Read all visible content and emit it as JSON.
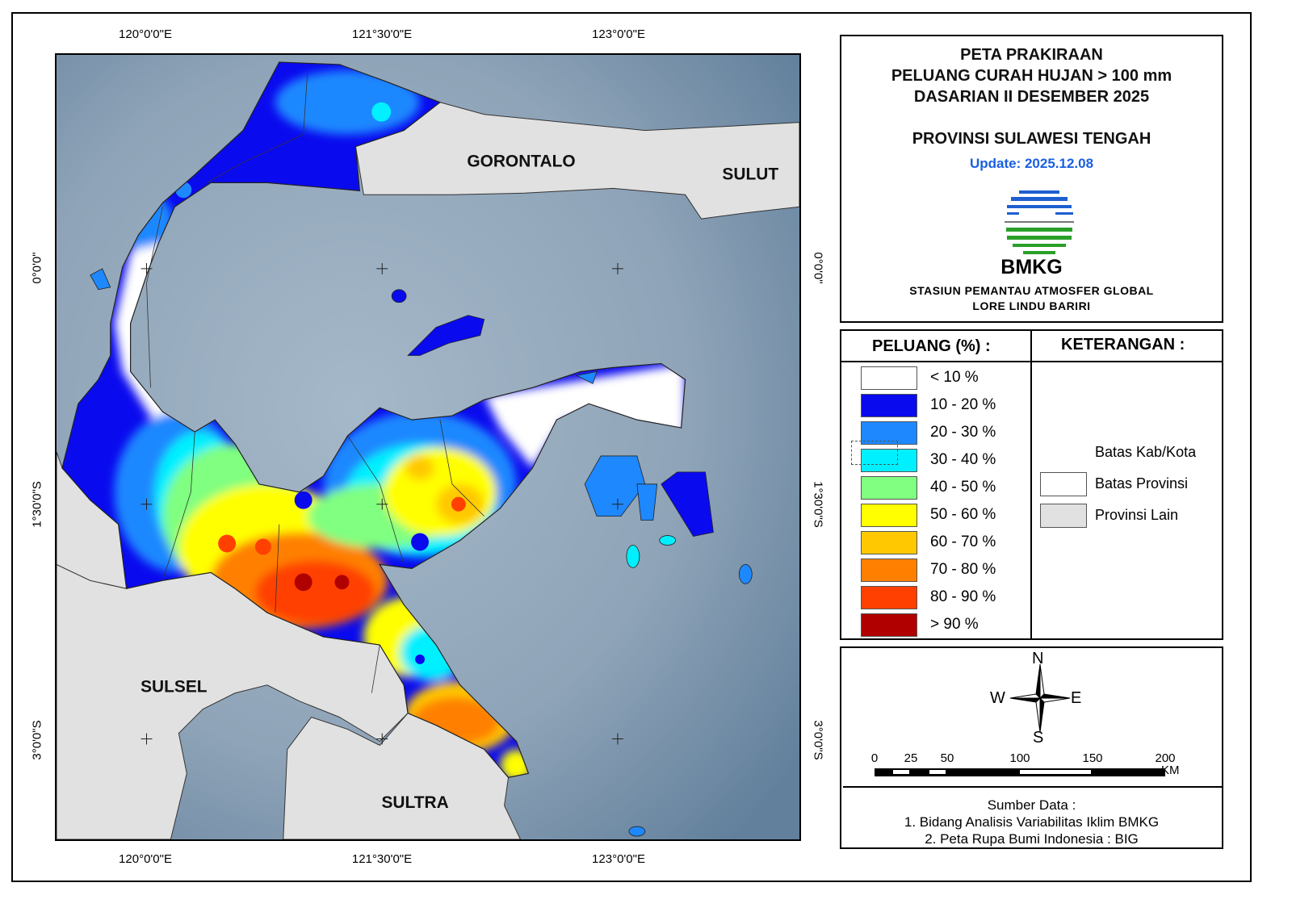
{
  "title": {
    "lines": [
      "PETA PRAKIRAAN",
      "PELUANG CURAH HUJAN > 100 mm",
      "DASARIAN II DESEMBER 2025"
    ],
    "province": "PROVINSI SULAWESI TENGAH",
    "update": "Update: 2025.12.08",
    "logo_text": "BMKG",
    "station": [
      "STASIUN PEMANTAU ATMOSFER GLOBAL",
      "LORE LINDU BARIRI"
    ]
  },
  "axes": {
    "lon": [
      "120°0'0\"E",
      "121°30'0\"E",
      "123°0'0\"E"
    ],
    "lat": [
      "0°0'0\"",
      "1°30'0\"S",
      "3°0'0\"S"
    ]
  },
  "map_labels": {
    "gorontalo": "GORONTALO",
    "sulut": "SULUT",
    "sulsel": "SULSEL",
    "sultra": "SULTRA"
  },
  "legend": {
    "header": "PELUANG (%) :",
    "items": [
      {
        "label": "< 10 %",
        "color": "#ffffff"
      },
      {
        "label": "10 - 20 %",
        "color": "#0a0aee"
      },
      {
        "label": "20 - 30 %",
        "color": "#1e88ff"
      },
      {
        "label": "30 - 40 %",
        "color": "#00f0ff"
      },
      {
        "label": "40 - 50 %",
        "color": "#80ff80"
      },
      {
        "label": "50 - 60 %",
        "color": "#ffff00"
      },
      {
        "label": "60 - 70 %",
        "color": "#ffc800"
      },
      {
        "label": "70 - 80 %",
        "color": "#ff8000"
      },
      {
        "label": "80 - 90 %",
        "color": "#ff4000"
      },
      {
        "label": "> 90 %",
        "color": "#b00000"
      }
    ]
  },
  "keterangan": {
    "header": "KETERANGAN :",
    "items": [
      {
        "label": "Batas Kab/Kota"
      },
      {
        "label": "Batas Provinsi"
      },
      {
        "label": "Provinsi Lain",
        "color": "#e1e1e1"
      }
    ]
  },
  "compass": {
    "n": "N",
    "s": "S",
    "e": "E",
    "w": "W"
  },
  "scale": {
    "ticks": [
      "0",
      "25",
      "50",
      "100",
      "150",
      "200"
    ],
    "unit": "KM"
  },
  "source": {
    "header": "Sumber Data :",
    "lines": [
      "1. Bidang Analisis Variabilitas Iklim BMKG",
      "2. Peta Rupa Bumi Indonesia : BIG"
    ]
  },
  "colors": {
    "sea": "#8fa4b8",
    "other_land": "#e1e1e1"
  }
}
